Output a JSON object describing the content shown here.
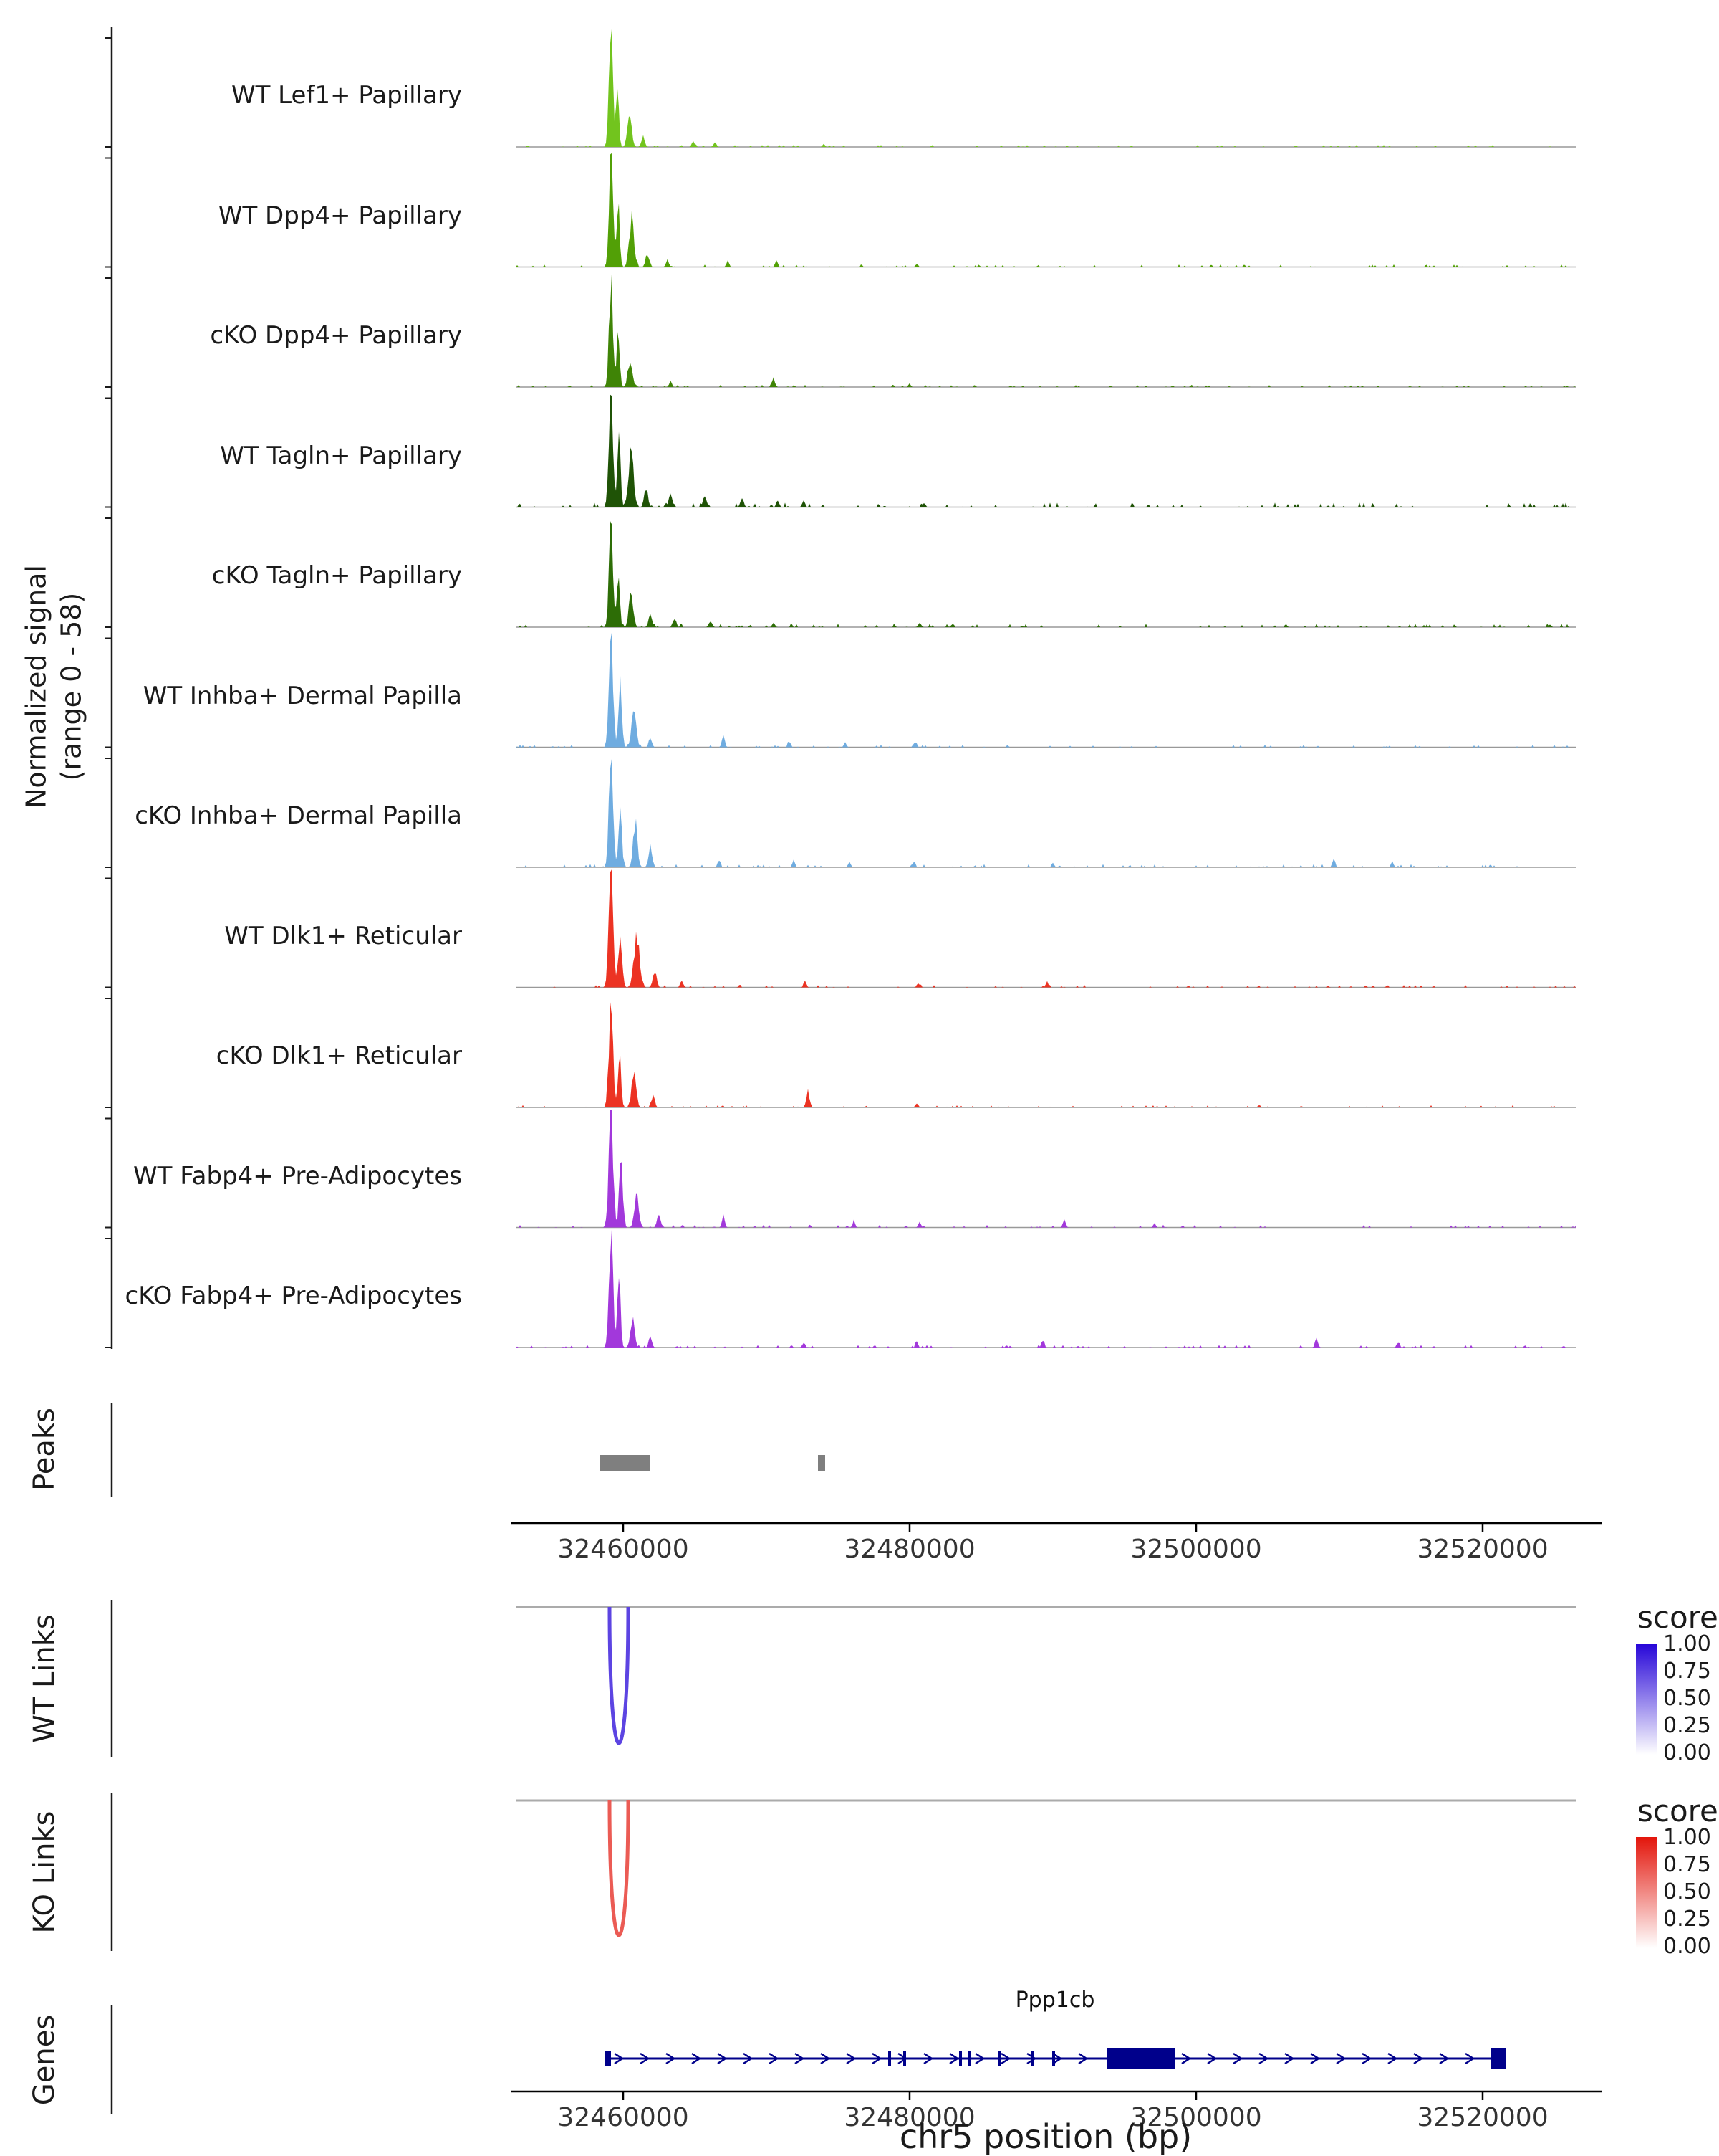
{
  "figure": {
    "y_axis_label_line1": "Normalized signal",
    "y_axis_label_line2": "(range 0 - 58)",
    "x_axis_label": "chr5 position (bp)",
    "sections": {
      "peaks": "Peaks",
      "wt_links": "WT Links",
      "ko_links": "KO Links",
      "genes": "Genes"
    }
  },
  "chart_data": {
    "type": "area",
    "region": {
      "chrom": "chr5",
      "start": 32452500,
      "end": 32526500
    },
    "x_ticks": [
      32460000,
      32480000,
      32500000,
      32520000
    ],
    "x_tick_labels": [
      "32460000",
      "32480000",
      "32500000",
      "32520000"
    ],
    "signal_range": [
      0,
      58
    ],
    "tracks": [
      {
        "name": "WT Lef1+ Papillary",
        "color": "#72C41E",
        "seed": 1,
        "noise": 0.018,
        "peaks": [
          [
            32459150,
            1.0,
            400
          ],
          [
            32459600,
            0.5,
            300
          ],
          [
            32460450,
            0.28,
            450
          ],
          [
            32461400,
            0.09,
            350
          ],
          [
            32464900,
            0.05,
            300
          ],
          [
            32466400,
            0.04,
            300
          ],
          [
            32474000,
            0.03,
            250
          ]
        ]
      },
      {
        "name": "WT Dpp4+ Papillary",
        "color": "#52A006",
        "seed": 2,
        "noise": 0.022,
        "peaks": [
          [
            32459150,
            1.0,
            400
          ],
          [
            32459650,
            0.55,
            320
          ],
          [
            32460600,
            0.42,
            500
          ],
          [
            32461700,
            0.12,
            380
          ],
          [
            32463100,
            0.06,
            300
          ],
          [
            32467300,
            0.05,
            280
          ],
          [
            32470700,
            0.05,
            280
          ],
          [
            32480500,
            0.03,
            250
          ]
        ]
      },
      {
        "name": "cKO Dpp4+ Papillary",
        "color": "#3F8406",
        "seed": 3,
        "noise": 0.02,
        "peaks": [
          [
            32459150,
            0.96,
            400
          ],
          [
            32459650,
            0.48,
            320
          ],
          [
            32460500,
            0.26,
            450
          ],
          [
            32463300,
            0.05,
            280
          ],
          [
            32470500,
            0.07,
            320
          ],
          [
            32480000,
            0.03,
            250
          ]
        ]
      },
      {
        "name": "WT Tagln+ Papillary",
        "color": "#1F5306",
        "seed": 4,
        "noise": 0.04,
        "peaks": [
          [
            32459150,
            1.0,
            420
          ],
          [
            32459700,
            0.6,
            340
          ],
          [
            32460550,
            0.46,
            520
          ],
          [
            32461600,
            0.17,
            380
          ],
          [
            32463300,
            0.11,
            380
          ],
          [
            32465700,
            0.1,
            380
          ],
          [
            32468300,
            0.07,
            350
          ],
          [
            32470800,
            0.05,
            300
          ],
          [
            32472600,
            0.05,
            300
          ],
          [
            32481000,
            0.04,
            280
          ]
        ]
      },
      {
        "name": "cKO Tagln+ Papillary",
        "color": "#2D6D06",
        "seed": 5,
        "noise": 0.032,
        "peaks": [
          [
            32459150,
            0.86,
            400
          ],
          [
            32459650,
            0.48,
            320
          ],
          [
            32460550,
            0.28,
            450
          ],
          [
            32461900,
            0.11,
            360
          ],
          [
            32463600,
            0.08,
            330
          ],
          [
            32466100,
            0.06,
            320
          ],
          [
            32470500,
            0.04,
            280
          ],
          [
            32480700,
            0.04,
            280
          ]
        ]
      },
      {
        "name": "WT Inhba+ Dermal Papilla",
        "color": "#6FACE0",
        "seed": 6,
        "noise": 0.022,
        "peaks": [
          [
            32459150,
            1.0,
            420
          ],
          [
            32459800,
            0.56,
            360
          ],
          [
            32460750,
            0.32,
            460
          ],
          [
            32461900,
            0.09,
            330
          ],
          [
            32467000,
            0.1,
            300
          ],
          [
            32471600,
            0.05,
            280
          ],
          [
            32475500,
            0.04,
            260
          ],
          [
            32480400,
            0.05,
            280
          ]
        ]
      },
      {
        "name": "cKO Inhba+ Dermal Papilla",
        "color": "#6FACE0",
        "seed": 7,
        "noise": 0.028,
        "peaks": [
          [
            32459150,
            1.0,
            420
          ],
          [
            32459800,
            0.52,
            340
          ],
          [
            32460850,
            0.38,
            440
          ],
          [
            32461900,
            0.2,
            380
          ],
          [
            32466700,
            0.07,
            290
          ],
          [
            32471900,
            0.06,
            280
          ],
          [
            32475800,
            0.05,
            270
          ],
          [
            32480300,
            0.06,
            280
          ],
          [
            32490000,
            0.04,
            260
          ],
          [
            32509600,
            0.08,
            290
          ],
          [
            32513700,
            0.05,
            270
          ]
        ]
      },
      {
        "name": "WT Dlk1+ Reticular",
        "color": "#EC3323",
        "seed": 8,
        "noise": 0.022,
        "peaks": [
          [
            32459150,
            0.95,
            460
          ],
          [
            32459800,
            0.5,
            380
          ],
          [
            32460950,
            0.45,
            600
          ],
          [
            32462200,
            0.14,
            380
          ],
          [
            32464100,
            0.06,
            320
          ],
          [
            32472700,
            0.05,
            280
          ],
          [
            32480600,
            0.04,
            270
          ],
          [
            32489600,
            0.05,
            280
          ]
        ]
      },
      {
        "name": "cKO Dlk1+ Reticular",
        "color": "#EC3323",
        "seed": 9,
        "noise": 0.02,
        "peaks": [
          [
            32459150,
            0.9,
            440
          ],
          [
            32459750,
            0.45,
            340
          ],
          [
            32460750,
            0.3,
            460
          ],
          [
            32462100,
            0.1,
            340
          ],
          [
            32472900,
            0.15,
            330
          ],
          [
            32480500,
            0.04,
            270
          ]
        ]
      },
      {
        "name": "WT Fabp4+ Pre-Adipocytes",
        "color": "#A238DB",
        "seed": 10,
        "noise": 0.024,
        "peaks": [
          [
            32459150,
            1.0,
            460
          ],
          [
            32459850,
            0.58,
            380
          ],
          [
            32460950,
            0.28,
            460
          ],
          [
            32462500,
            0.11,
            370
          ],
          [
            32467000,
            0.09,
            290
          ],
          [
            32476100,
            0.05,
            270
          ],
          [
            32480700,
            0.05,
            270
          ],
          [
            32490800,
            0.07,
            280
          ],
          [
            32497100,
            0.04,
            260
          ]
        ]
      },
      {
        "name": "cKO Fabp4+ Pre-Adipocytes",
        "color": "#A238DB",
        "seed": 11,
        "noise": 0.024,
        "peaks": [
          [
            32459150,
            1.0,
            420
          ],
          [
            32459700,
            0.65,
            330
          ],
          [
            32460650,
            0.24,
            430
          ],
          [
            32461900,
            0.09,
            330
          ],
          [
            32472600,
            0.05,
            270
          ],
          [
            32480500,
            0.04,
            260
          ],
          [
            32489300,
            0.06,
            280
          ],
          [
            32508400,
            0.08,
            290
          ],
          [
            32514100,
            0.05,
            270
          ]
        ]
      }
    ],
    "peaks_track": {
      "color": "#7F7F7F",
      "intervals": [
        [
          32458400,
          32461900
        ],
        [
          32473600,
          32474100
        ]
      ]
    },
    "links": [
      {
        "label": "WT Links",
        "color_high": "#2605D8",
        "score": 0.75,
        "anchors": [
          32459050,
          32460350
        ]
      },
      {
        "label": "KO Links",
        "color_high": "#E3150B",
        "score": 0.7,
        "anchors": [
          32459050,
          32460350
        ]
      }
    ],
    "score_legend": {
      "title": "score",
      "tick_labels": [
        "1.00",
        "0.75",
        "0.50",
        "0.25",
        "0.00"
      ]
    },
    "gene": {
      "label": "Ppp1cb",
      "color": "#00008B",
      "strand": "+",
      "start": 32458700,
      "end": 32521600,
      "exon_ticks": [
        [
          32458700,
          32459150
        ],
        [
          32478500,
          32478650
        ],
        [
          32479550,
          32479700
        ],
        [
          32483450,
          32483600
        ],
        [
          32484050,
          32484200
        ],
        [
          32486200,
          32486350
        ],
        [
          32488450,
          32488600
        ],
        [
          32489950,
          32490100
        ]
      ],
      "cds_blocks": [
        [
          32493750,
          32498500
        ],
        [
          32520600,
          32521600
        ]
      ]
    }
  }
}
